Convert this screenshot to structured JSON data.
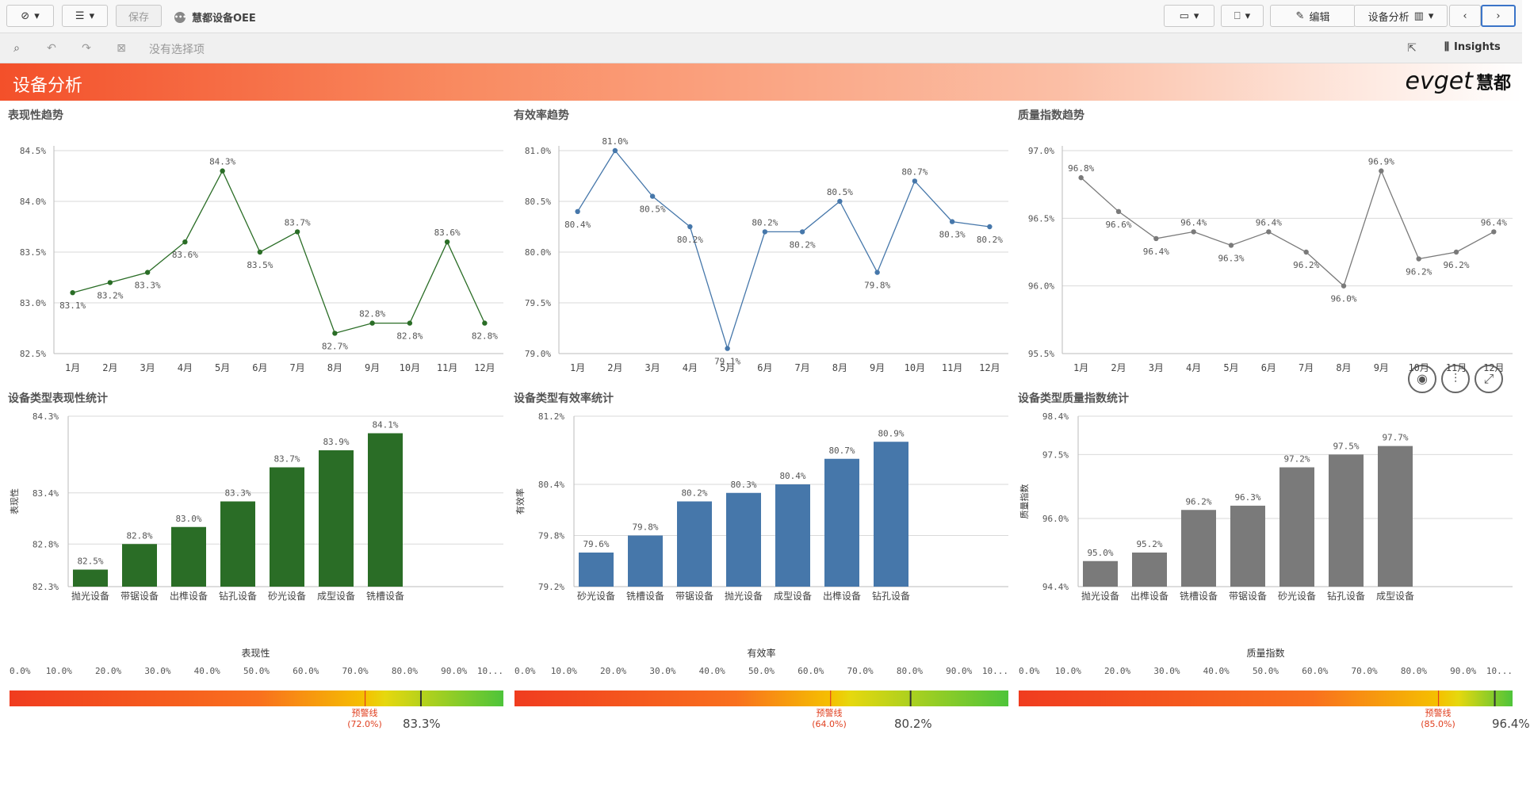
{
  "toolbar": {
    "save_label": "保存",
    "app_name": "慧都设备OEE",
    "edit_label": "编辑",
    "sheet_label": "设备分析",
    "insights_label": "Insights"
  },
  "selections": {
    "none_label": "没有选择项"
  },
  "banner": {
    "title": "设备分析",
    "logo_text": "evget",
    "logo_cn": "慧都"
  },
  "colors": {
    "green": "#2a6d26",
    "blue": "#4677aa",
    "gray": "#7a7a7a",
    "banner_start": "#f3502a"
  },
  "chart_data": [
    {
      "id": "line1",
      "type": "line",
      "title": "表现性趋势",
      "color": "#2a6d26",
      "categories": [
        "1月",
        "2月",
        "3月",
        "4月",
        "5月",
        "6月",
        "7月",
        "8月",
        "9月",
        "10月",
        "11月",
        "12月"
      ],
      "values": [
        83.1,
        83.2,
        83.3,
        83.6,
        84.3,
        83.5,
        83.7,
        82.7,
        82.8,
        82.8,
        83.6,
        82.8
      ],
      "ylim": [
        82.5,
        84.5
      ],
      "yticks": [
        "82.5%",
        "83.0%",
        "83.5%",
        "84.0%",
        "84.5%"
      ],
      "labels": [
        "83.1%",
        "83.2%",
        "83.3%",
        "83.6%",
        "84.3%",
        "83.5%",
        "83.7%",
        "82.7%",
        "82.8%",
        "82.8%",
        "83.6%",
        "82.8%"
      ]
    },
    {
      "id": "line2",
      "type": "line",
      "title": "有效率趋势",
      "color": "#4677aa",
      "categories": [
        "1月",
        "2月",
        "3月",
        "4月",
        "5月",
        "6月",
        "7月",
        "8月",
        "9月",
        "10月",
        "11月",
        "12月"
      ],
      "values": [
        80.4,
        81.0,
        80.55,
        80.25,
        79.05,
        80.2,
        80.2,
        80.5,
        79.8,
        80.7,
        80.3,
        80.25
      ],
      "ylim": [
        79.0,
        81.0
      ],
      "yticks": [
        "79.0%",
        "79.5%",
        "80.0%",
        "80.5%",
        "81.0%"
      ],
      "labels": [
        "80.4%",
        "81.0%",
        "80.5%",
        "80.2%",
        "79.1%",
        "80.2%",
        "80.2%",
        "80.5%",
        "79.8%",
        "80.7%",
        "80.3%",
        "80.2%"
      ]
    },
    {
      "id": "line3",
      "type": "line",
      "title": "质量指数趋势",
      "color": "#7a7a7a",
      "categories": [
        "1月",
        "2月",
        "3月",
        "4月",
        "5月",
        "6月",
        "7月",
        "8月",
        "9月",
        "10月",
        "11月",
        "12月"
      ],
      "values": [
        96.8,
        96.55,
        96.35,
        96.4,
        96.3,
        96.4,
        96.25,
        96.0,
        96.85,
        96.2,
        96.25,
        96.4
      ],
      "ylim": [
        95.5,
        97.0
      ],
      "yticks": [
        "95.5%",
        "96.0%",
        "96.5%",
        "97.0%"
      ],
      "labels": [
        "96.8%",
        "96.6%",
        "96.4%",
        "96.4%",
        "96.3%",
        "96.4%",
        "96.2%",
        "96.0%",
        "96.9%",
        "96.2%",
        "96.2%",
        "96.4%"
      ]
    },
    {
      "id": "bar1",
      "type": "bar",
      "title": "设备类型表现性统计",
      "color": "#2a6d26",
      "ylabel": "表现性",
      "categories": [
        "抛光设备",
        "带锯设备",
        "出榫设备",
        "钻孔设备",
        "砂光设备",
        "成型设备",
        "铣槽设备"
      ],
      "values": [
        82.5,
        82.8,
        83.0,
        83.3,
        83.7,
        83.9,
        84.1
      ],
      "ylim": [
        82.3,
        84.3
      ],
      "yticks": [
        "82.3%",
        "82.8%",
        "83.4%",
        "84.3%"
      ],
      "ytick_vals": [
        82.3,
        82.8,
        83.4,
        84.3
      ],
      "labels": [
        "82.5%",
        "82.8%",
        "83.0%",
        "83.3%",
        "83.7%",
        "83.9%",
        "84.1%"
      ]
    },
    {
      "id": "bar2",
      "type": "bar",
      "title": "设备类型有效率统计",
      "color": "#4677aa",
      "ylabel": "有效率",
      "categories": [
        "砂光设备",
        "铣槽设备",
        "带锯设备",
        "抛光设备",
        "成型设备",
        "出榫设备",
        "钻孔设备"
      ],
      "values": [
        79.6,
        79.8,
        80.2,
        80.3,
        80.4,
        80.7,
        80.9
      ],
      "ylim": [
        79.2,
        81.2
      ],
      "yticks": [
        "79.2%",
        "79.8%",
        "80.4%",
        "81.2%"
      ],
      "ytick_vals": [
        79.2,
        79.8,
        80.4,
        81.2
      ],
      "labels": [
        "79.6%",
        "79.8%",
        "80.2%",
        "80.3%",
        "80.4%",
        "80.7%",
        "80.9%"
      ]
    },
    {
      "id": "bar3",
      "type": "bar",
      "title": "设备类型质量指数统计",
      "color": "#7a7a7a",
      "ylabel": "质量指数",
      "categories": [
        "抛光设备",
        "出榫设备",
        "铣槽设备",
        "带锯设备",
        "砂光设备",
        "钻孔设备",
        "成型设备"
      ],
      "values": [
        95.0,
        95.2,
        96.2,
        96.3,
        97.2,
        97.5,
        97.7
      ],
      "ylim": [
        94.4,
        98.4
      ],
      "yticks": [
        "94.4%",
        "96.0%",
        "97.5%",
        "98.4%"
      ],
      "ytick_vals": [
        94.4,
        96.0,
        97.5,
        98.4
      ],
      "labels": [
        "95.0%",
        "95.2%",
        "96.2%",
        "96.3%",
        "97.2%",
        "97.5%",
        "97.7%"
      ]
    }
  ],
  "gauges": [
    {
      "title": "表现性",
      "value": 83.3,
      "value_label": "83.3%",
      "warn": 72.0,
      "warn_label": "预警线",
      "warn_pct": "(72.0%)"
    },
    {
      "title": "有效率",
      "value": 80.2,
      "value_label": "80.2%",
      "warn": 64.0,
      "warn_label": "预警线",
      "warn_pct": "(64.0%)"
    },
    {
      "title": "质量指数",
      "value": 96.4,
      "value_label": "96.4%",
      "warn": 85.0,
      "warn_label": "预警线",
      "warn_pct": "(85.0%)"
    }
  ],
  "gauge_ticks": [
    "0.0%",
    "10.0%",
    "20.0%",
    "30.0%",
    "40.0%",
    "50.0%",
    "60.0%",
    "70.0%",
    "80.0%",
    "90.0%",
    "10..."
  ],
  "fab_icons": [
    "camera-icon",
    "sliders-icon",
    "expand-icon"
  ]
}
